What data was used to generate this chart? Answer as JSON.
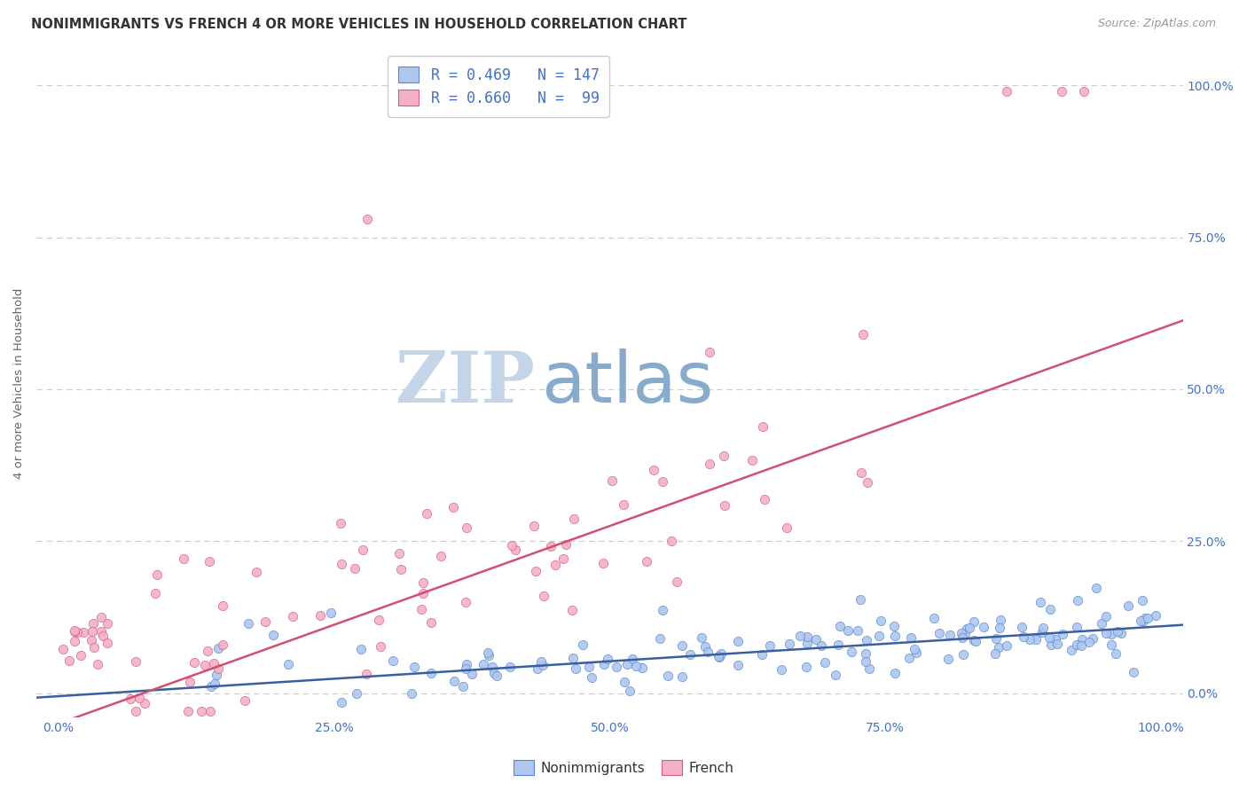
{
  "title": "NONIMMIGRANTS VS FRENCH 4 OR MORE VEHICLES IN HOUSEHOLD CORRELATION CHART",
  "source": "Source: ZipAtlas.com",
  "ylabel": "4 or more Vehicles in Household",
  "x_tick_labels": [
    "0.0%",
    "25.0%",
    "50.0%",
    "75.0%",
    "100.0%"
  ],
  "y_tick_labels_right": [
    "0.0%",
    "25.0%",
    "50.0%",
    "75.0%",
    "100.0%"
  ],
  "series": [
    {
      "name": "Nonimmigrants",
      "R": 0.469,
      "N": 147,
      "color": "#aec6f0",
      "edge_color": "#5588cc",
      "line_color": "#3a5fa0",
      "slope": 0.115,
      "intercept": -0.005
    },
    {
      "name": "French",
      "R": 0.66,
      "N": 99,
      "color": "#f4b0c4",
      "edge_color": "#d06080",
      "line_color": "#d05070",
      "slope": 0.65,
      "intercept": -0.05
    }
  ],
  "xlim": [
    -0.02,
    1.02
  ],
  "ylim": [
    -0.04,
    1.06
  ],
  "watermark_zip": "ZIP",
  "watermark_atlas": "atlas",
  "watermark_color_zip": "#c5d5e8",
  "watermark_color_atlas": "#88aacc",
  "background_color": "#ffffff",
  "grid_color": "#cccccc",
  "title_color": "#333333",
  "source_color": "#999999",
  "tick_color": "#4472c4",
  "legend_text_color": "#4472c4"
}
